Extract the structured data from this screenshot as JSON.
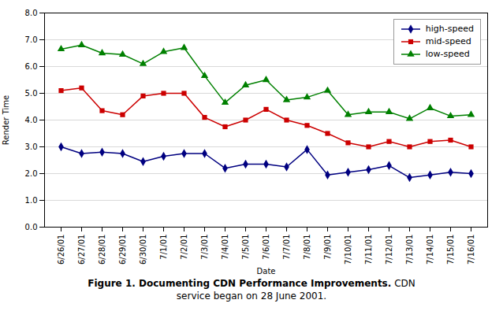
{
  "chart_data": {
    "type": "line",
    "title": "Figure 1. Documenting CDN Performance Improvements.",
    "caption": [
      "CDN",
      "service began on 28 June 2001."
    ],
    "xlabel": "Date",
    "ylabel": "Render Time",
    "categories": [
      "6/26/01",
      "6/27/01",
      "6/28/01",
      "6/29/01",
      "6/30/01",
      "7/1/01",
      "7/2/01",
      "7/3/01",
      "7/4/01",
      "7/5/01",
      "7/6/01",
      "7/7/01",
      "7/8/01",
      "7/9/01",
      "7/10/01",
      "7/11/01",
      "7/12/01",
      "7/13/01",
      "7/14/01",
      "7/15/01",
      "7/16/01"
    ],
    "series": [
      {
        "name": "high-speed",
        "color": "#000080",
        "marker": "diamond",
        "values": [
          3.0,
          2.75,
          2.8,
          2.75,
          2.45,
          2.65,
          2.75,
          2.75,
          2.2,
          2.35,
          2.35,
          2.25,
          2.9,
          1.95,
          2.05,
          2.15,
          2.3,
          1.85,
          1.95,
          2.05,
          2.0
        ]
      },
      {
        "name": "mid-speed",
        "color": "#CC0000",
        "marker": "square",
        "values": [
          5.1,
          5.2,
          4.35,
          4.2,
          4.9,
          5.0,
          5.0,
          4.1,
          3.75,
          4.0,
          4.4,
          4.0,
          3.8,
          3.5,
          3.15,
          3.0,
          3.2,
          3.0,
          3.2,
          3.25,
          3.0
        ]
      },
      {
        "name": "low-speed",
        "color": "#008000",
        "marker": "triangle",
        "values": [
          6.65,
          6.8,
          6.5,
          6.45,
          6.1,
          6.55,
          6.7,
          5.65,
          4.65,
          5.3,
          5.5,
          4.75,
          4.85,
          5.1,
          4.2,
          4.3,
          4.3,
          4.05,
          4.45,
          4.15,
          4.2
        ]
      }
    ],
    "ylim": [
      0.0,
      8.0
    ],
    "yticks": [
      {
        "value": 0,
        "label": "0.0"
      },
      {
        "value": 1,
        "label": "1.0"
      },
      {
        "value": 2,
        "label": "2.0"
      },
      {
        "value": 3,
        "label": "3.0"
      },
      {
        "value": 4,
        "label": "4.0"
      },
      {
        "value": 5,
        "label": "5.0"
      },
      {
        "value": 6,
        "label": "6.0"
      },
      {
        "value": 7,
        "label": "7.0"
      },
      {
        "value": 8,
        "label": "8.0"
      }
    ],
    "grid": true,
    "legend": "upper right"
  }
}
